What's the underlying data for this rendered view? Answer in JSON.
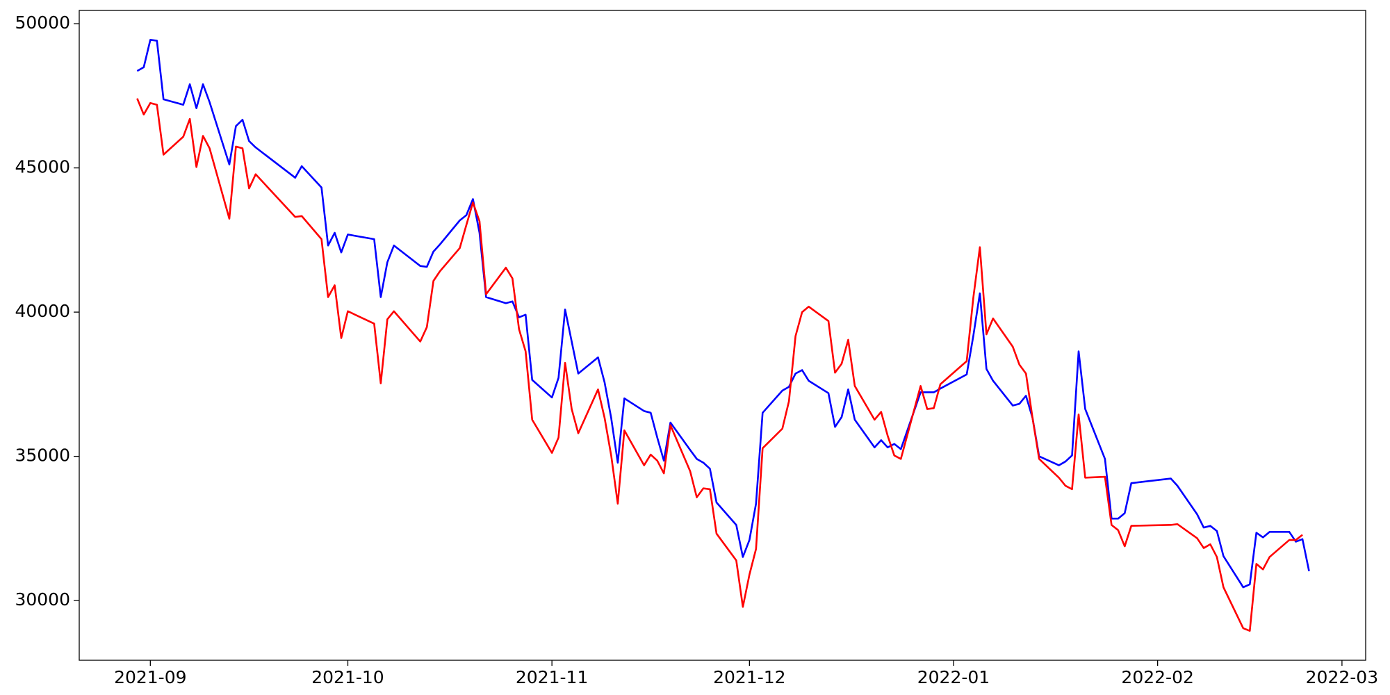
{
  "chart_data": {
    "type": "line",
    "x": [
      -2,
      -1,
      0,
      1,
      2,
      5,
      6,
      7,
      8,
      9,
      12,
      13,
      14,
      15,
      16,
      22,
      23,
      26,
      27,
      28,
      29,
      30,
      34,
      35,
      36,
      37,
      41,
      42,
      43,
      44,
      47,
      48,
      49,
      50,
      51,
      54,
      55,
      56,
      57,
      58,
      61,
      62,
      63,
      64,
      65,
      68,
      69,
      70,
      71,
      72,
      75,
      76,
      77,
      78,
      79,
      82,
      83,
      84,
      85,
      86,
      89,
      90,
      91,
      92,
      93,
      96,
      97,
      98,
      99,
      100,
      103,
      104,
      105,
      106,
      107,
      110,
      111,
      112,
      113,
      114,
      117,
      118,
      119,
      120,
      124,
      125,
      126,
      127,
      128,
      131,
      132,
      133,
      134,
      135,
      138,
      139,
      140,
      141,
      142,
      145,
      146,
      147,
      148,
      149,
      155,
      156,
      159,
      160,
      161,
      162,
      163,
      166,
      167,
      168,
      169,
      170,
      173,
      174,
      175,
      176
    ],
    "series": [
      {
        "color": "#0000ff",
        "values": [
          48360,
          48490,
          49440,
          49410,
          47380,
          47190,
          47900,
          47070,
          47900,
          47280,
          45120,
          46450,
          46670,
          45930,
          45710,
          44660,
          45060,
          44320,
          42310,
          42750,
          42070,
          42690,
          42530,
          40520,
          41730,
          42310,
          41600,
          41570,
          42100,
          42350,
          43180,
          43360,
          43920,
          42750,
          40520,
          40310,
          40370,
          39820,
          39910,
          37650,
          37040,
          37720,
          40090,
          38980,
          37870,
          38430,
          37560,
          36330,
          34780,
          37010,
          36570,
          36510,
          35650,
          34850,
          36170,
          35220,
          34910,
          34780,
          34570,
          33400,
          32620,
          31510,
          32100,
          33360,
          36510,
          37280,
          37410,
          37870,
          37990,
          37620,
          37190,
          36020,
          36360,
          37320,
          36270,
          35310,
          35560,
          35310,
          35430,
          35250,
          37220,
          37220,
          37220,
          37350,
          37840,
          39170,
          40650,
          38030,
          37620,
          36760,
          36820,
          37100,
          36330,
          35000,
          34690,
          34820,
          35030,
          38640,
          36640,
          34910,
          32840,
          32840,
          33030,
          34070,
          34230,
          33980,
          32990,
          32530,
          32590,
          32410,
          31540,
          30460,
          30560,
          32350,
          32190,
          32380,
          32380,
          32040,
          32130,
          31020
        ]
      },
      {
        "color": "#ff0000",
        "values": [
          47410,
          46850,
          47250,
          47190,
          45460,
          46080,
          46700,
          45030,
          46110,
          45680,
          43240,
          45740,
          45680,
          44290,
          44780,
          43300,
          43330,
          42530,
          40520,
          40930,
          39100,
          40030,
          39600,
          37530,
          39750,
          40030,
          38980,
          39480,
          41080,
          41420,
          42220,
          43020,
          43800,
          43150,
          40620,
          41540,
          41170,
          39410,
          38640,
          36270,
          35120,
          35650,
          38240,
          36640,
          35800,
          37320,
          36330,
          35030,
          33360,
          35900,
          34690,
          35060,
          34850,
          34410,
          36080,
          34480,
          33580,
          33890,
          33860,
          32320,
          31390,
          29780,
          30900,
          31790,
          35280,
          35960,
          36910,
          39170,
          40000,
          40190,
          39690,
          37900,
          38210,
          39040,
          37440,
          36270,
          36540,
          35710,
          35030,
          34910,
          37440,
          36640,
          36670,
          37500,
          38300,
          40490,
          42250,
          39230,
          39780,
          38800,
          38180,
          37870,
          36330,
          34910,
          34260,
          33980,
          33860,
          36450,
          34260,
          34290,
          32620,
          32440,
          31880,
          32590,
          32620,
          32650,
          32160,
          31820,
          31950,
          31510,
          30460,
          29040,
          28950,
          31270,
          31080,
          31510,
          32100,
          32100,
          32280,
          null
        ]
      }
    ],
    "xlim": [
      -10.8,
      184.6
    ],
    "xticks": [
      {
        "value": 0,
        "label": "2021-09"
      },
      {
        "value": 30,
        "label": "2021-10"
      },
      {
        "value": 61,
        "label": "2021-11"
      },
      {
        "value": 91,
        "label": "2021-12"
      },
      {
        "value": 122,
        "label": "2022-01"
      },
      {
        "value": 153,
        "label": "2022-02"
      },
      {
        "value": 181,
        "label": "2022-03"
      }
    ],
    "ylim": [
      27930,
      50460
    ],
    "yticks": [
      30000,
      35000,
      40000,
      45000,
      50000
    ]
  }
}
